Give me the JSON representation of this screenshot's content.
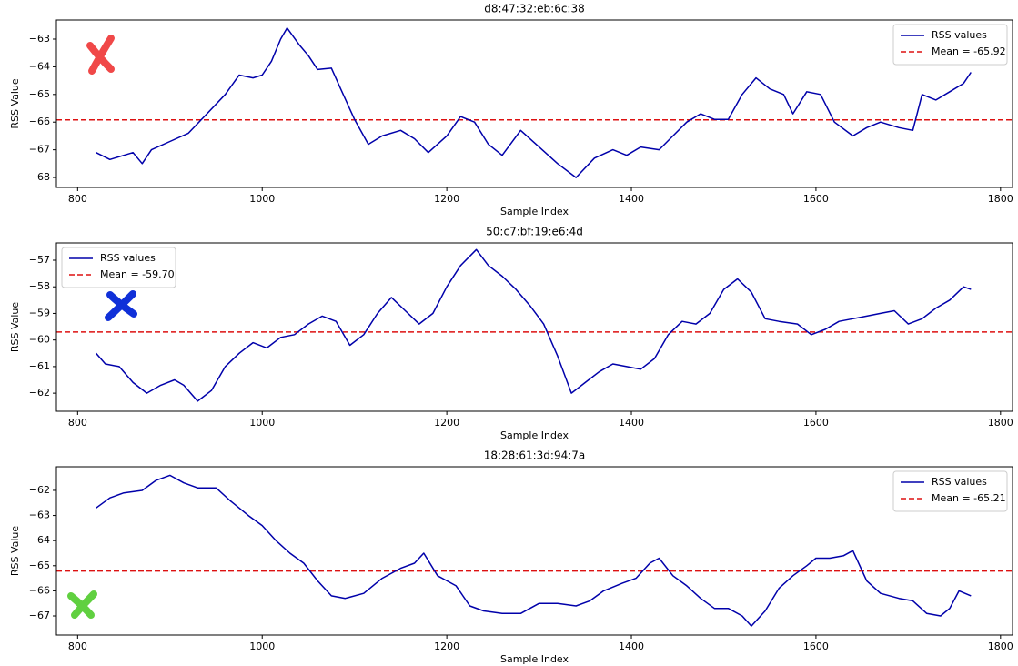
{
  "chart_data": [
    {
      "type": "line",
      "title": "d8:47:32:eb:6c:38",
      "xlabel": "Sample Index",
      "ylabel": "RSS Value",
      "legend": "upper right",
      "xlim": [
        777,
        1813
      ],
      "xticks": [
        800,
        1000,
        1200,
        1400,
        1600,
        1800
      ],
      "ylim": [
        -68.36,
        -62.31
      ],
      "yticks": [
        {
          "value": -68,
          "label": "−68"
        },
        {
          "value": -67,
          "label": "−67"
        },
        {
          "value": -66,
          "label": "−66"
        },
        {
          "value": -65,
          "label": "−65"
        },
        {
          "value": -64,
          "label": "−64"
        },
        {
          "value": -63,
          "label": "−63"
        }
      ],
      "series": [
        {
          "name": "RSS values",
          "color": "#0000aa",
          "x": [
            820,
            835,
            850,
            860,
            870,
            880,
            900,
            920,
            940,
            960,
            975,
            990,
            1000,
            1010,
            1020,
            1027,
            1040,
            1050,
            1060,
            1075,
            1085,
            1100,
            1115,
            1130,
            1150,
            1165,
            1180,
            1200,
            1215,
            1230,
            1245,
            1260,
            1280,
            1300,
            1320,
            1340,
            1360,
            1380,
            1395,
            1410,
            1430,
            1445,
            1460,
            1475,
            1490,
            1505,
            1520,
            1535,
            1550,
            1565,
            1575,
            1590,
            1605,
            1620,
            1640,
            1655,
            1670,
            1690,
            1705,
            1715,
            1730,
            1745,
            1760,
            1768
          ],
          "values": [
            -67.1,
            -67.35,
            -67.2,
            -67.1,
            -67.5,
            -67.0,
            -66.7,
            -66.4,
            -65.7,
            -65.0,
            -64.3,
            -64.4,
            -64.3,
            -63.8,
            -63.0,
            -62.6,
            -63.2,
            -63.6,
            -64.1,
            -64.05,
            -64.8,
            -65.9,
            -66.8,
            -66.5,
            -66.3,
            -66.6,
            -67.1,
            -66.5,
            -65.8,
            -66.0,
            -66.8,
            -67.2,
            -66.3,
            -66.9,
            -67.5,
            -68.0,
            -67.3,
            -67.0,
            -67.2,
            -66.9,
            -67.0,
            -66.5,
            -66.0,
            -65.7,
            -65.9,
            -65.9,
            -65.0,
            -64.4,
            -64.8,
            -65.0,
            -65.7,
            -64.9,
            -65.0,
            -66.0,
            -66.5,
            -66.2,
            -66.0,
            -66.2,
            -66.3,
            -65.0,
            -65.2,
            -64.9,
            -64.6,
            -64.2
          ]
        }
      ],
      "hlines": [
        {
          "name": "Mean = -65.92",
          "value": -65.92,
          "color": "#dd1111",
          "style": "dashed"
        }
      ]
    },
    {
      "type": "line",
      "title": "50:c7:bf:19:e6:4d",
      "xlabel": "Sample Index",
      "ylabel": "RSS Value",
      "legend": "upper left",
      "xlim": [
        777,
        1813
      ],
      "xticks": [
        800,
        1000,
        1200,
        1400,
        1600,
        1800
      ],
      "ylim": [
        -62.68,
        -56.35
      ],
      "yticks": [
        {
          "value": -62,
          "label": "−62"
        },
        {
          "value": -61,
          "label": "−61"
        },
        {
          "value": -60,
          "label": "−60"
        },
        {
          "value": -59,
          "label": "−59"
        },
        {
          "value": -58,
          "label": "−58"
        },
        {
          "value": -57,
          "label": "−57"
        }
      ],
      "series": [
        {
          "name": "RSS values",
          "color": "#0000aa",
          "x": [
            820,
            830,
            845,
            860,
            875,
            890,
            905,
            915,
            930,
            945,
            960,
            975,
            990,
            1005,
            1020,
            1035,
            1050,
            1065,
            1080,
            1095,
            1110,
            1125,
            1140,
            1155,
            1170,
            1185,
            1200,
            1215,
            1232,
            1245,
            1260,
            1275,
            1290,
            1305,
            1320,
            1335,
            1350,
            1365,
            1380,
            1395,
            1410,
            1425,
            1440,
            1455,
            1470,
            1485,
            1500,
            1515,
            1530,
            1545,
            1560,
            1580,
            1595,
            1610,
            1625,
            1640,
            1655,
            1670,
            1685,
            1700,
            1715,
            1730,
            1745,
            1760,
            1768
          ],
          "values": [
            -60.5,
            -60.9,
            -61.0,
            -61.6,
            -62.0,
            -61.7,
            -61.5,
            -61.7,
            -62.3,
            -61.9,
            -61.0,
            -60.5,
            -60.1,
            -60.3,
            -59.9,
            -59.8,
            -59.4,
            -59.1,
            -59.3,
            -60.2,
            -59.8,
            -59.0,
            -58.4,
            -58.9,
            -59.4,
            -59.0,
            -58.0,
            -57.2,
            -56.6,
            -57.2,
            -57.6,
            -58.1,
            -58.7,
            -59.4,
            -60.6,
            -62.0,
            -61.6,
            -61.2,
            -60.9,
            -61.0,
            -61.1,
            -60.7,
            -59.8,
            -59.3,
            -59.4,
            -59.0,
            -58.1,
            -57.7,
            -58.2,
            -59.2,
            -59.3,
            -59.4,
            -59.8,
            -59.6,
            -59.3,
            -59.2,
            -59.1,
            -59.0,
            -58.9,
            -59.4,
            -59.2,
            -58.8,
            -58.5,
            -58.0,
            -58.1
          ]
        }
      ],
      "hlines": [
        {
          "name": "Mean = -59.70",
          "value": -59.7,
          "color": "#dd1111",
          "style": "dashed"
        }
      ]
    },
    {
      "type": "line",
      "title": "18:28:61:3d:94:7a",
      "xlabel": "Sample Index",
      "ylabel": "RSS Value",
      "legend": "upper right",
      "xlim": [
        777,
        1813
      ],
      "xticks": [
        800,
        1000,
        1200,
        1400,
        1600,
        1800
      ],
      "ylim": [
        -67.76,
        -61.06
      ],
      "yticks": [
        {
          "value": -67,
          "label": "−67"
        },
        {
          "value": -66,
          "label": "−66"
        },
        {
          "value": -65,
          "label": "−65"
        },
        {
          "value": -64,
          "label": "−64"
        },
        {
          "value": -63,
          "label": "−63"
        },
        {
          "value": -62,
          "label": "−62"
        }
      ],
      "series": [
        {
          "name": "RSS values",
          "color": "#0000aa",
          "x": [
            820,
            835,
            850,
            870,
            885,
            900,
            915,
            930,
            950,
            965,
            985,
            1000,
            1015,
            1030,
            1045,
            1060,
            1075,
            1090,
            1110,
            1130,
            1150,
            1165,
            1175,
            1190,
            1210,
            1225,
            1240,
            1260,
            1280,
            1300,
            1320,
            1340,
            1355,
            1370,
            1390,
            1405,
            1420,
            1430,
            1445,
            1460,
            1475,
            1490,
            1505,
            1520,
            1530,
            1545,
            1560,
            1575,
            1590,
            1600,
            1615,
            1630,
            1640,
            1655,
            1670,
            1690,
            1705,
            1720,
            1735,
            1745,
            1755,
            1768
          ],
          "values": [
            -62.7,
            -62.3,
            -62.1,
            -62.0,
            -61.6,
            -61.4,
            -61.7,
            -61.9,
            -61.9,
            -62.4,
            -63.0,
            -63.4,
            -64.0,
            -64.5,
            -64.9,
            -65.6,
            -66.2,
            -66.3,
            -66.1,
            -65.5,
            -65.1,
            -64.9,
            -64.5,
            -65.4,
            -65.8,
            -66.6,
            -66.8,
            -66.9,
            -66.9,
            -66.5,
            -66.5,
            -66.6,
            -66.4,
            -66.0,
            -65.7,
            -65.5,
            -64.9,
            -64.7,
            -65.4,
            -65.8,
            -66.3,
            -66.7,
            -66.7,
            -67.0,
            -67.4,
            -66.8,
            -65.9,
            -65.4,
            -65.0,
            -64.7,
            -64.7,
            -64.6,
            -64.4,
            -65.6,
            -66.1,
            -66.3,
            -66.4,
            -66.9,
            -67.0,
            -66.7,
            -66.0,
            -66.2
          ]
        }
      ],
      "hlines": [
        {
          "name": "Mean = -65.21",
          "value": -65.21,
          "color": "#dd1111",
          "style": "dashed"
        }
      ]
    }
  ]
}
